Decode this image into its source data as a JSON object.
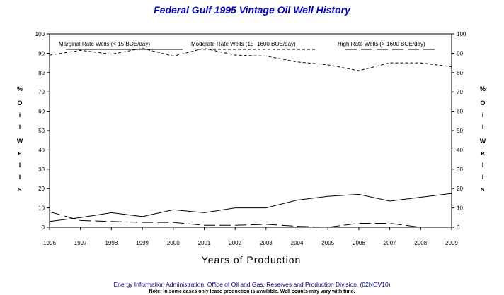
{
  "chart_data": {
    "type": "line",
    "title": "Federal Gulf 1995 Vintage Oil Well History",
    "xlabel": "Years of Production",
    "ylabel": "% Oil Wells",
    "ylim": [
      0,
      100
    ],
    "yticks": [
      0,
      10,
      20,
      30,
      40,
      50,
      60,
      70,
      80,
      90,
      100
    ],
    "x": [
      1996,
      1997,
      1998,
      1999,
      2000,
      2001,
      2002,
      2003,
      2004,
      2005,
      2006,
      2007,
      2008,
      2009
    ],
    "legend_position": "top",
    "grid": false,
    "series": [
      {
        "name": "Marginal Rate Wells (< 15 BOE/day)",
        "style": "solid",
        "values": [
          3,
          5,
          7.5,
          5.5,
          9,
          7.5,
          10,
          10,
          14,
          16,
          17,
          13.5,
          15.5,
          17.5
        ]
      },
      {
        "name": "Moderate Rate Wells (15−1600 BOE/day)",
        "style": "short-dash",
        "values": [
          89,
          91.5,
          89.5,
          92.5,
          88.5,
          92.5,
          89,
          88.5,
          85.5,
          84,
          81,
          85,
          85,
          83
        ]
      },
      {
        "name": "High Rate Wells (> 1600 BOE/day)",
        "style": "long-dash",
        "values": [
          8,
          3.5,
          3,
          2.5,
          2.5,
          1,
          1,
          1.5,
          0.5,
          0,
          2,
          2,
          0,
          0
        ]
      }
    ],
    "colors": {
      "text": "#000000",
      "title": "#0000cc",
      "footer": "#000080"
    }
  },
  "footer": {
    "source": "Energy Information Administration, Office of Oil and Gas, Reserves and Production Division. (02NOV10)",
    "note": "Note: In some cases only lease production is available. Well counts may vary with time."
  }
}
